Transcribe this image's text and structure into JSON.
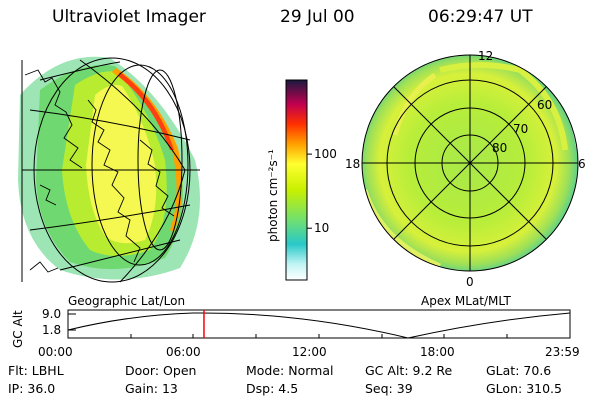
{
  "header": {
    "instrument": "Ultraviolet Imager",
    "date": "29 Jul 00",
    "time": "06:29:47 UT"
  },
  "maps": {
    "left_label": "Geographic Lat/Lon",
    "right_label": "Apex MLat/MLT",
    "polar_lat_labels": [
      "60",
      "70",
      "80"
    ],
    "polar_mlt_labels": {
      "top": "12",
      "left": "18",
      "right": "6",
      "bottom": "0"
    }
  },
  "colorbar": {
    "unit_label": "photon cm⁻²s⁻¹",
    "ticks": [
      "100",
      "10"
    ],
    "tick_values": [
      100,
      10
    ],
    "range": [
      2,
      1000
    ],
    "colors": [
      "#ffffff",
      "#a0f0f0",
      "#20c8c8",
      "#70e070",
      "#c8f000",
      "#ffff00",
      "#ffa000",
      "#ff3000",
      "#c00050",
      "#1a1a40"
    ]
  },
  "timeline": {
    "ylabel": "GC Alt",
    "y_ticks": [
      "9.0",
      "1.8"
    ],
    "x_ticks": [
      "00:00",
      "06:00",
      "12:00",
      "18:00",
      "23:59"
    ],
    "marker_color": "#ff0000",
    "marker_time": 6.5
  },
  "info": {
    "rows": [
      [
        {
          "key": "Flt:",
          "val": "LBHL"
        },
        {
          "key": "Door:",
          "val": "Open"
        },
        {
          "key": "Mode:",
          "val": "Normal"
        },
        {
          "key": "GC Alt:",
          "val": "9.2 Re"
        },
        {
          "key": "GLat:",
          "val": "70.6"
        }
      ],
      [
        {
          "key": "IP:",
          "val": "36.0"
        },
        {
          "key": "Gain:",
          "val": "13"
        },
        {
          "key": "Dsp:",
          "val": "4.5"
        },
        {
          "key": "Seq:",
          "val": "39"
        },
        {
          "key": "GLon:",
          "val": "310.5"
        }
      ]
    ]
  }
}
